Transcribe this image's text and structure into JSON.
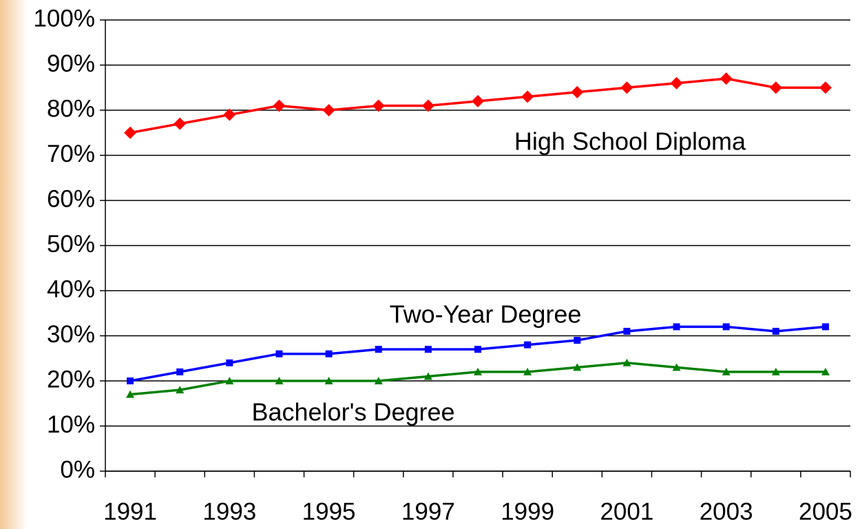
{
  "chart_data": {
    "type": "line",
    "categories": [
      "1991",
      null,
      "1993",
      null,
      "1995",
      null,
      "1997",
      null,
      "1999",
      null,
      "2001",
      null,
      "2003",
      null,
      "2005"
    ],
    "series": [
      {
        "name": "High School Diploma",
        "color": "#ff0000",
        "marker": "diamond",
        "values": [
          75,
          77,
          79,
          81,
          80,
          81,
          81,
          82,
          83,
          84,
          85,
          86,
          87,
          85,
          85
        ]
      },
      {
        "name": "Two-Year Degree",
        "color": "#0000ff",
        "marker": "square",
        "values": [
          20,
          22,
          24,
          26,
          26,
          27,
          27,
          27,
          28,
          29,
          31,
          32,
          32,
          31,
          32
        ]
      },
      {
        "name": "Bachelor's Degree",
        "color": "#008000",
        "marker": "triangle",
        "values": [
          17,
          18,
          20,
          20,
          20,
          20,
          21,
          22,
          22,
          23,
          24,
          23,
          22,
          22,
          22
        ]
      }
    ],
    "ylim": [
      0,
      100
    ],
    "yticks": [
      {
        "value": 0,
        "label": "0%"
      },
      {
        "value": 10,
        "label": "10%"
      },
      {
        "value": 20,
        "label": "20%"
      },
      {
        "value": 30,
        "label": "30%"
      },
      {
        "value": 40,
        "label": "40%"
      },
      {
        "value": 50,
        "label": "50%"
      },
      {
        "value": 60,
        "label": "60%"
      },
      {
        "value": 70,
        "label": "70%"
      },
      {
        "value": 80,
        "label": "80%"
      },
      {
        "value": 90,
        "label": "90%"
      },
      {
        "value": 100,
        "label": "100%"
      }
    ],
    "grid": true
  }
}
